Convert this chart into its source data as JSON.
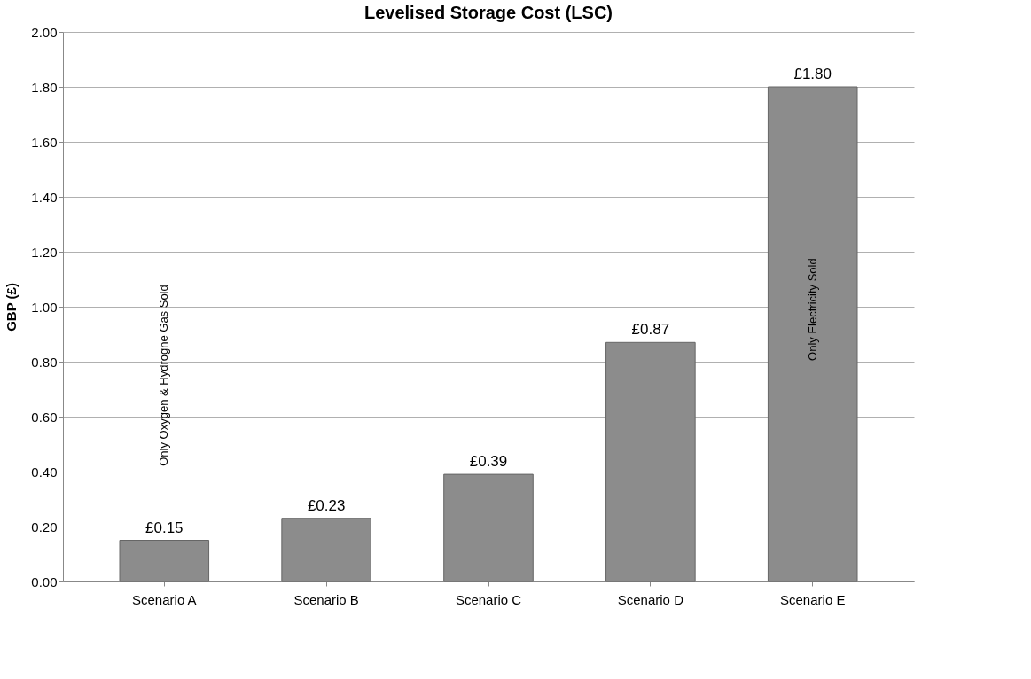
{
  "chart_data": {
    "type": "bar",
    "title": "Levelised Storage Cost (LSC)",
    "ylabel": "GBP (£)",
    "categories": [
      "Scenario A",
      "Scenario B",
      "Scenario C",
      "Scenario D",
      "Scenario E"
    ],
    "values": [
      0.15,
      0.23,
      0.39,
      0.87,
      1.8
    ],
    "value_labels": [
      "£0.15",
      "£0.23",
      "£0.39",
      "£0.87",
      "£1.80"
    ],
    "color": "#8c8c8c",
    "ylim": [
      0,
      2
    ],
    "yticks": [
      {
        "value": 0,
        "label": "0.00"
      },
      {
        "value": 0.2,
        "label": "0.20"
      },
      {
        "value": 0.4,
        "label": "0.40"
      },
      {
        "value": 0.6,
        "label": "0.60"
      },
      {
        "value": 0.8,
        "label": "0.80"
      },
      {
        "value": 1.0,
        "label": "1.00"
      },
      {
        "value": 1.2,
        "label": "1.20"
      },
      {
        "value": 1.4,
        "label": "1.40"
      },
      {
        "value": 1.6,
        "label": "1.60"
      },
      {
        "value": 1.8,
        "label": "1.80"
      },
      {
        "value": 2.0,
        "label": "2.00"
      }
    ],
    "grid": "y",
    "annotations": [
      "Only Oxygen & Hydrogne Gas Sold",
      "Only Electricity Sold"
    ]
  }
}
